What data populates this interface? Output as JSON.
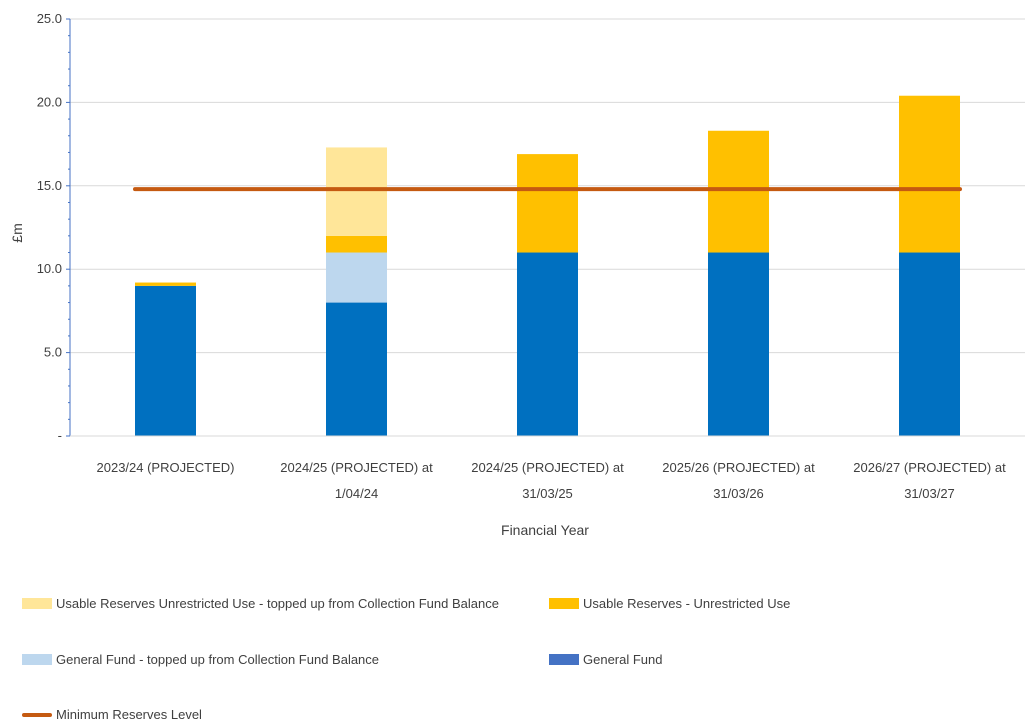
{
  "chart_data": {
    "type": "bar",
    "stacked": true,
    "xlabel": "Financial Year",
    "ylabel": "£m",
    "ylim": [
      0,
      25
    ],
    "yticks": [
      0,
      5,
      10,
      15,
      20,
      25
    ],
    "ytick_labels": [
      "-",
      "5.0",
      "10.0",
      "15.0",
      "20.0",
      "25.0"
    ],
    "categories": [
      [
        "2023/24 (PROJECTED)"
      ],
      [
        "2024/25 (PROJECTED) at",
        "1/04/24"
      ],
      [
        "2024/25 (PROJECTED) at",
        "31/03/25"
      ],
      [
        "2025/26 (PROJECTED) at",
        "31/03/26"
      ],
      [
        "2026/27 (PROJECTED) at",
        "31/03/27"
      ]
    ],
    "series": [
      {
        "name": "General Fund",
        "color": "#0070c0",
        "values": [
          9.0,
          8.0,
          11.0,
          11.0,
          11.0
        ]
      },
      {
        "name": "General Fund - topped up from Collection Fund Balance",
        "color": "#bdd7ee",
        "values": [
          0,
          3.0,
          0,
          0,
          0
        ]
      },
      {
        "name": "Usable Reserves - Unrestricted Use",
        "color": "#ffc000",
        "values": [
          0.2,
          1.0,
          5.9,
          7.3,
          9.4
        ]
      },
      {
        "name": "Usable Reserves Unrestricted Use - topped up from Collection Fund Balance",
        "color": "#ffe699",
        "values": [
          0,
          5.3,
          0,
          0,
          0
        ]
      }
    ],
    "line": {
      "name": "Minimum Reserves Level",
      "color": "#c55a11",
      "value": 14.8
    },
    "legend_position": "bottom",
    "grid": true,
    "legend": [
      {
        "label": "Usable Reserves Unrestricted Use - topped up from Collection Fund Balance",
        "color": "#ffe699",
        "kind": "box"
      },
      {
        "label": "Usable Reserves - Unrestricted Use",
        "color": "#ffc000",
        "kind": "box"
      },
      {
        "label": "General Fund - topped up from Collection Fund Balance",
        "color": "#bdd7ee",
        "kind": "box"
      },
      {
        "label": "General Fund",
        "color": "#4472c4",
        "kind": "box"
      },
      {
        "label": "Minimum Reserves Level",
        "color": "#c55a11",
        "kind": "line"
      }
    ]
  }
}
